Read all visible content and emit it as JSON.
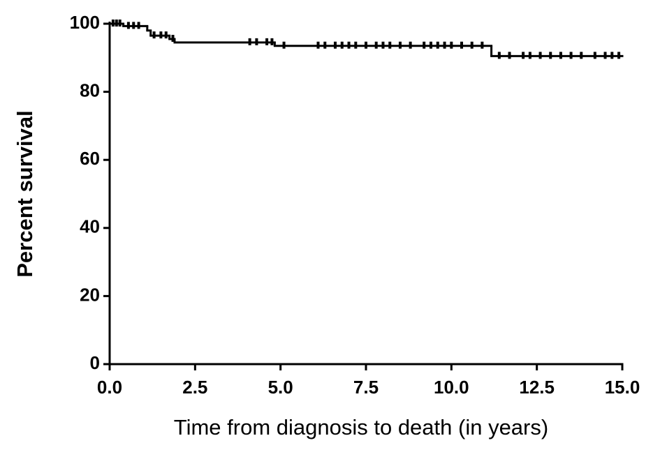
{
  "chart_data": {
    "type": "line",
    "drawstyle": "steps-post",
    "color": "#000000",
    "xlabel": "Time from diagnosis to death (in years)",
    "ylabel": "Percent survival",
    "x": [
      0,
      0.4,
      1.1,
      1.2,
      1.75,
      1.9,
      4.83,
      11.17,
      15
    ],
    "values": [
      100,
      99.3,
      98,
      96.5,
      95.5,
      94.5,
      93.5,
      90.5,
      90.5
    ],
    "censored": {
      "x": [
        0.1,
        0.2,
        0.3,
        0.55,
        0.7,
        0.85,
        1.3,
        1.5,
        1.65,
        1.85,
        4.1,
        4.3,
        4.6,
        4.75,
        5.1,
        6.1,
        6.3,
        6.6,
        6.8,
        7.0,
        7.2,
        7.5,
        7.8,
        8.0,
        8.2,
        8.5,
        8.8,
        9.2,
        9.4,
        9.6,
        9.8,
        10.0,
        10.3,
        10.6,
        10.9,
        11.4,
        11.7,
        12.1,
        12.3,
        12.6,
        12.9,
        13.2,
        13.5,
        13.8,
        14.2,
        14.5,
        14.7,
        14.9
      ],
      "values": [
        100,
        100,
        100,
        99.3,
        99.3,
        99.3,
        96.5,
        96.5,
        96.5,
        95.5,
        94.5,
        94.5,
        94.5,
        94.5,
        93.5,
        93.5,
        93.5,
        93.5,
        93.5,
        93.5,
        93.5,
        93.5,
        93.5,
        93.5,
        93.5,
        93.5,
        93.5,
        93.5,
        93.5,
        93.5,
        93.5,
        93.5,
        93.5,
        93.5,
        93.5,
        90.5,
        90.5,
        90.5,
        90.5,
        90.5,
        90.5,
        90.5,
        90.5,
        90.5,
        90.5,
        90.5,
        90.5,
        90.5
      ]
    },
    "xlim": [
      0,
      15
    ],
    "ylim": [
      0,
      100
    ],
    "xticks": [
      {
        "value": 0,
        "label": "0.0"
      },
      {
        "value": 2.5,
        "label": "2.5"
      },
      {
        "value": 5,
        "label": "5.0"
      },
      {
        "value": 7.5,
        "label": "7.5"
      },
      {
        "value": 10,
        "label": "10.0"
      },
      {
        "value": 12.5,
        "label": "12.5"
      },
      {
        "value": 15,
        "label": "15.0"
      }
    ],
    "yticks": [
      0,
      20,
      40,
      60,
      80,
      100
    ]
  }
}
